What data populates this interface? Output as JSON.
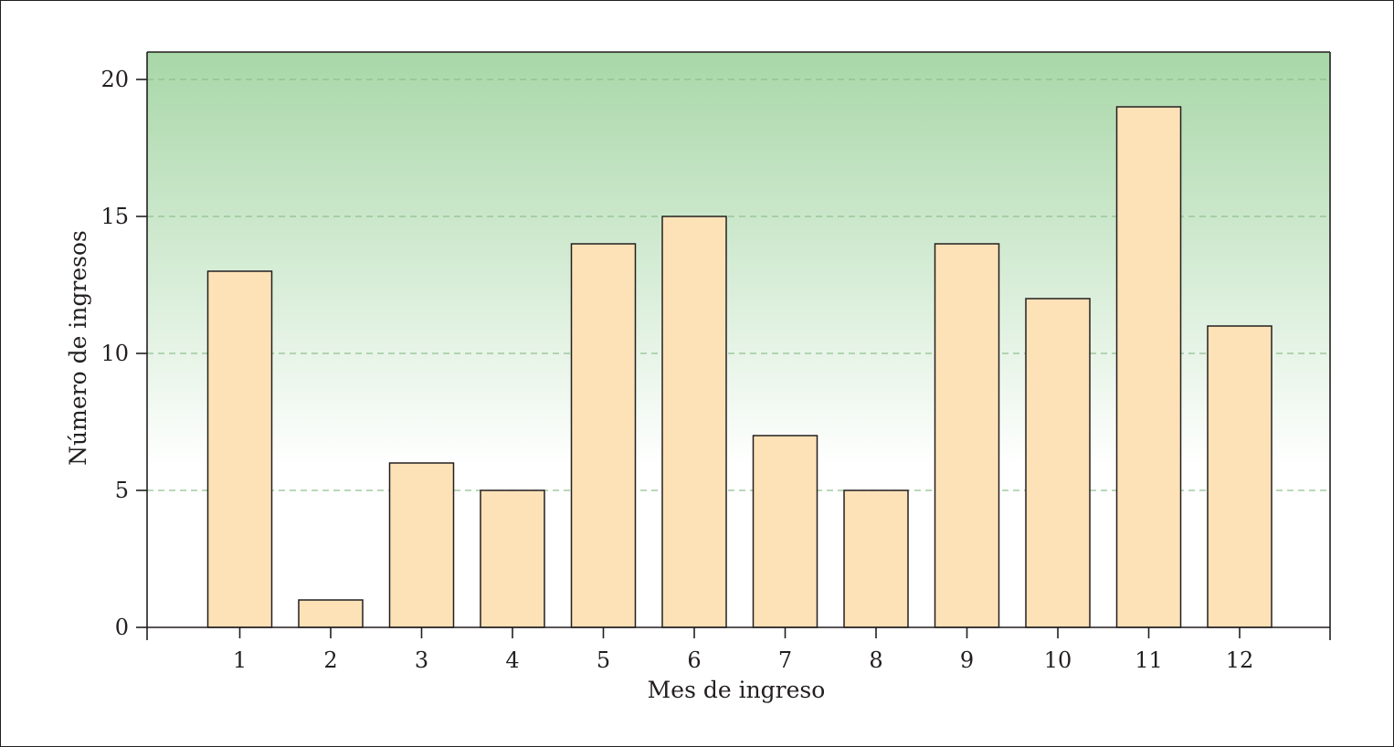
{
  "chart_data": {
    "type": "bar",
    "categories": [
      "1",
      "2",
      "3",
      "4",
      "5",
      "6",
      "7",
      "8",
      "9",
      "10",
      "11",
      "12"
    ],
    "values": [
      13,
      1,
      6,
      5,
      14,
      15,
      7,
      5,
      14,
      12,
      19,
      11
    ],
    "title": "",
    "xlabel": "Mes de ingreso",
    "ylabel": "Número de ingresos",
    "ylim": [
      0,
      21
    ],
    "yticks": [
      0,
      5,
      10,
      15,
      20
    ],
    "ytick_labels": [
      "0",
      "5",
      "10",
      "15",
      "20"
    ],
    "grid": "horizontal dashed",
    "legend": "none",
    "colors": {
      "bar_fill": "#fde2b7",
      "bar_stroke": "#231f20",
      "grid": "#8fc08f",
      "background_top": "#a8d7a8",
      "background_bottom": "#ffffff",
      "axis": "#231f20"
    }
  }
}
